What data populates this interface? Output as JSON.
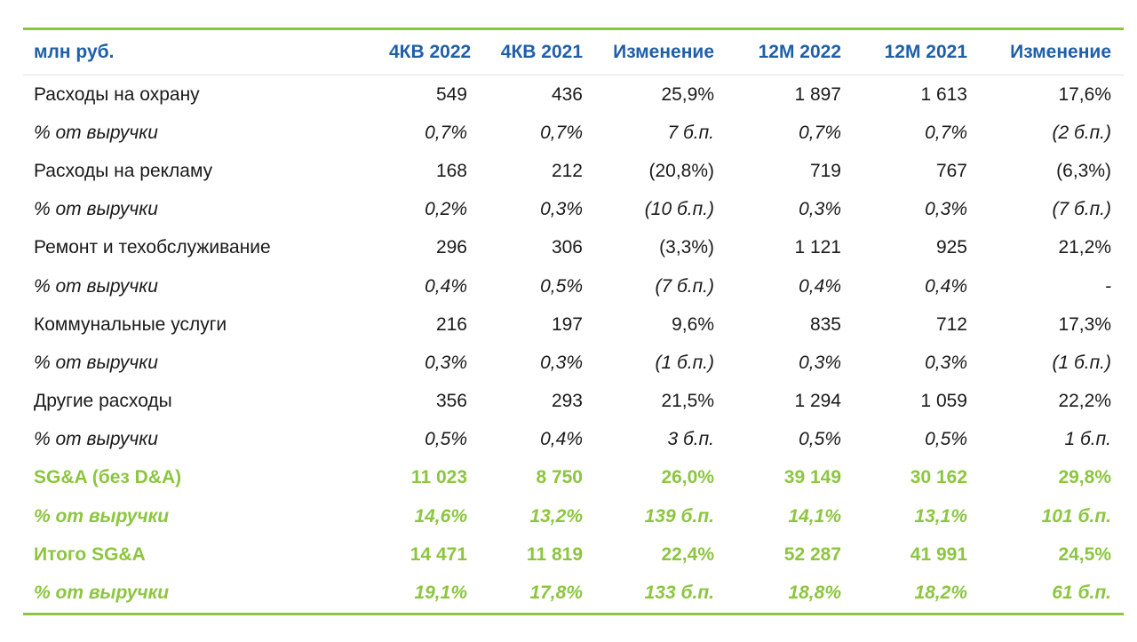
{
  "colors": {
    "header_text": "#1f5fa8",
    "accent_green": "#8cc63e",
    "rule": "#8cc63e"
  },
  "header": [
    "млн руб.",
    "4КВ 2022",
    "4КВ 2021",
    "Изменение",
    "12М 2022",
    "12М 2021",
    "Изменение"
  ],
  "rows": [
    {
      "style": "normal",
      "cells": [
        "Расходы на охрану",
        "549",
        "436",
        "25,9%",
        "1 897",
        "1 613",
        "17,6%"
      ]
    },
    {
      "style": "pct",
      "cells": [
        "% от выручки",
        "0,7%",
        "0,7%",
        "7 б.п.",
        "0,7%",
        "0,7%",
        "(2 б.п.)"
      ]
    },
    {
      "style": "normal",
      "cells": [
        "Расходы на рекламу",
        "168",
        "212",
        "(20,8%)",
        "719",
        "767",
        "(6,3%)"
      ]
    },
    {
      "style": "pct",
      "cells": [
        "% от выручки",
        "0,2%",
        "0,3%",
        "(10 б.п.)",
        "0,3%",
        "0,3%",
        "(7 б.п.)"
      ]
    },
    {
      "style": "normal",
      "cells": [
        "Ремонт и техобслуживание",
        "296",
        "306",
        "(3,3%)",
        "1 121",
        "925",
        "21,2%"
      ]
    },
    {
      "style": "pct",
      "cells": [
        "% от выручки",
        "0,4%",
        "0,5%",
        "(7 б.п.)",
        "0,4%",
        "0,4%",
        "-"
      ]
    },
    {
      "style": "normal",
      "cells": [
        "Коммунальные услуги",
        "216",
        "197",
        "9,6%",
        "835",
        "712",
        "17,3%"
      ]
    },
    {
      "style": "pct",
      "cells": [
        "% от выручки",
        "0,3%",
        "0,3%",
        "(1 б.п.)",
        "0,3%",
        "0,3%",
        "(1 б.п.)"
      ]
    },
    {
      "style": "normal",
      "cells": [
        "Другие расходы",
        "356",
        "293",
        "21,5%",
        "1 294",
        "1 059",
        "22,2%"
      ]
    },
    {
      "style": "pct",
      "cells": [
        "% от выручки",
        "0,5%",
        "0,4%",
        "3 б.п.",
        "0,5%",
        "0,5%",
        "1 б.п."
      ]
    },
    {
      "style": "green",
      "cells": [
        "SG&A (без D&A)",
        "11 023",
        "8 750",
        "26,0%",
        "39 149",
        "30 162",
        "29,8%"
      ]
    },
    {
      "style": "green-pct",
      "cells": [
        "% от выручки",
        "14,6%",
        "13,2%",
        "139 б.п.",
        "14,1%",
        "13,1%",
        "101 б.п."
      ]
    },
    {
      "style": "green",
      "cells": [
        "Итого SG&A",
        "14 471",
        "11 819",
        "22,4%",
        "52 287",
        "41 991",
        "24,5%"
      ]
    },
    {
      "style": "green-pct",
      "cells": [
        "% от выручки",
        "19,1%",
        "17,8%",
        "133 б.п.",
        "18,8%",
        "18,2%",
        "61 б.п."
      ]
    }
  ]
}
